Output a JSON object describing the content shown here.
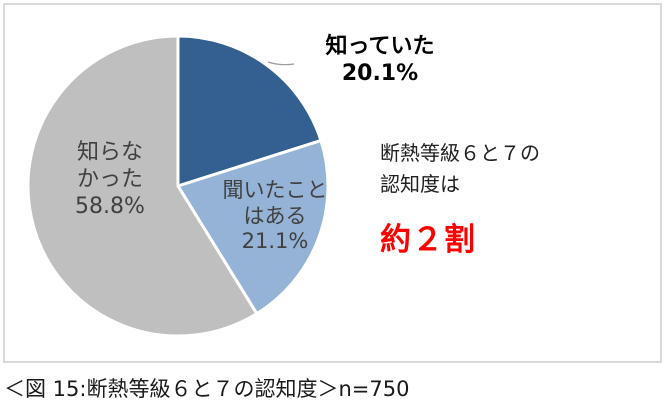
{
  "chart_data": {
    "type": "pie",
    "title": "",
    "slices": [
      {
        "label": "知っていた",
        "value": 20.1,
        "value_label": "20.1%",
        "color": "#335f91"
      },
      {
        "label": "聞いたことはある",
        "value": 21.1,
        "value_label": "21.1%",
        "color": "#94b3d6"
      },
      {
        "label": "知らなかった",
        "value": 58.8,
        "value_label": "58.8%",
        "color": "#bfbfbf"
      }
    ]
  },
  "labels": {
    "known_line1": "知っていた",
    "known_line2": "20.1%",
    "heard_line1": "聞いたこと",
    "heard_line2": "はある",
    "heard_line3": "21.1%",
    "unknown_line1": "知らな",
    "unknown_line2": "かった",
    "unknown_line3": "58.8%"
  },
  "annotation": {
    "line1": "断熱等級６と７の",
    "line2": "認知度は",
    "highlight": "約２割",
    "highlight_color": "#ff0000"
  },
  "caption": "＜図 15:断熱等級６と７の認知度＞n=750"
}
